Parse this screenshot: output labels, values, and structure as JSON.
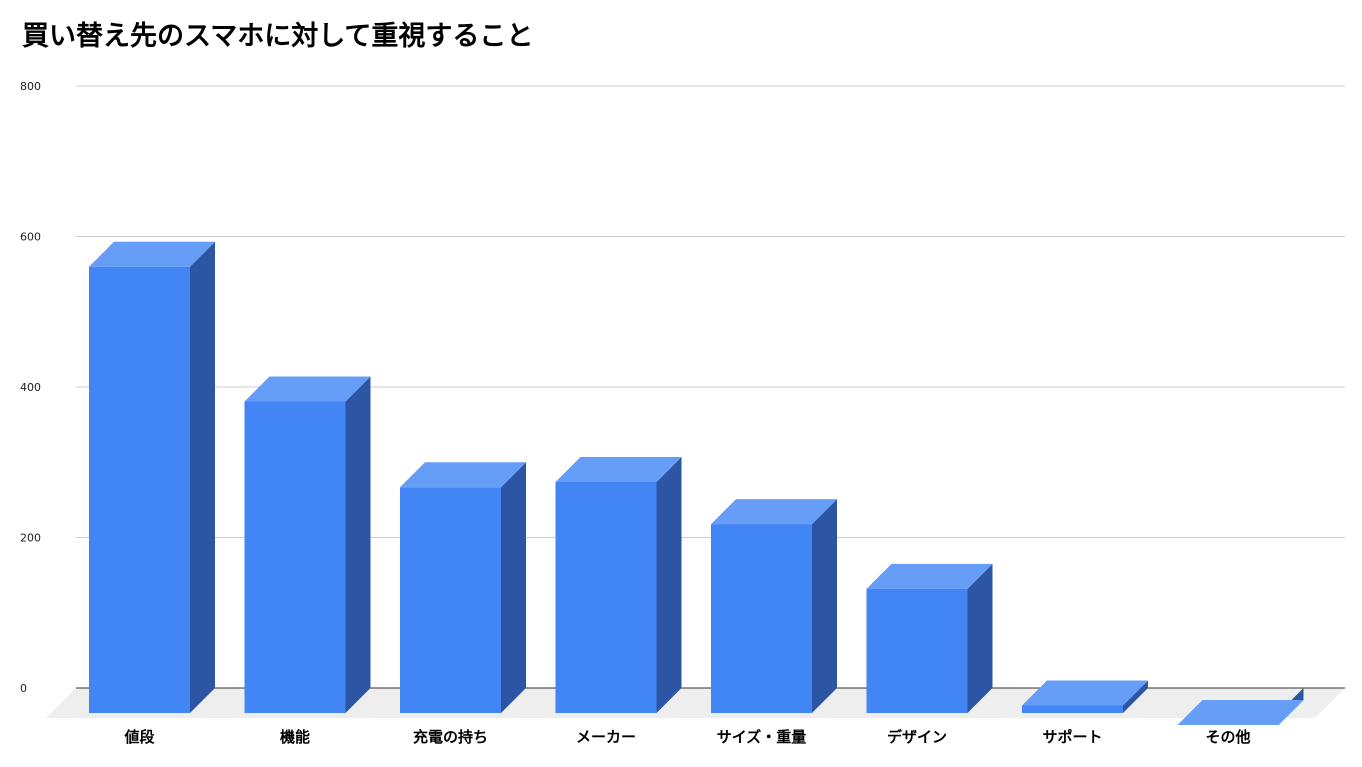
{
  "chart_data": {
    "type": "bar",
    "title": "買い替え先のスマホに対して重視すること",
    "xlabel": "",
    "ylabel": "",
    "ylim": [
      0,
      800
    ],
    "yticks": [
      0,
      200,
      400,
      600,
      800
    ],
    "grid": true,
    "legend": "none",
    "categories": [
      "値段",
      "機能",
      "充電の持ち",
      "メーカー",
      "サイズ・重量",
      "デザイン",
      "サポート",
      "その他"
    ],
    "values": [
      593,
      414,
      300,
      307,
      251,
      165,
      10,
      -16
    ],
    "colors": {
      "front": "#4285f4",
      "top": "#669df6",
      "side": "#2c56a3",
      "floor": "#eeeeee",
      "grid": "#cccccc",
      "baseline": "#333333"
    }
  }
}
